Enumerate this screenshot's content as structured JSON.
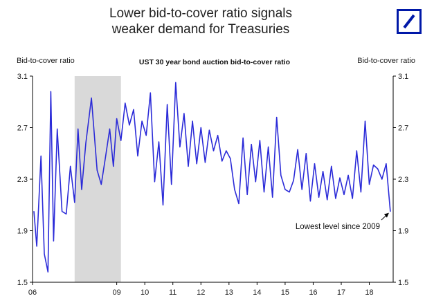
{
  "slide": {
    "title_line1": "Lower bid-to-cover ratio signals",
    "title_line2": "weaker demand for Treasuries",
    "logo": "deutsche-bank-logo"
  },
  "chart_data": {
    "type": "line",
    "title": "UST 30 year bond auction bid-to-cover ratio",
    "ylabel_left": "Bid-to-cover ratio",
    "ylabel_right": "Bid-to-cover ratio",
    "ylim": [
      1.5,
      3.1
    ],
    "xlim": [
      2006.0,
      2018.85
    ],
    "yticks": [
      {
        "value": 1.5,
        "label": "1.5"
      },
      {
        "value": 1.9,
        "label": "1.9"
      },
      {
        "value": 2.3,
        "label": "2.3"
      },
      {
        "value": 2.7,
        "label": "2.7"
      },
      {
        "value": 3.1,
        "label": "3.1"
      }
    ],
    "xticks": [
      {
        "value": 2006,
        "label": "06"
      },
      {
        "value": 2009,
        "label": "09"
      },
      {
        "value": 2010,
        "label": "10"
      },
      {
        "value": 2011,
        "label": "11"
      },
      {
        "value": 2012,
        "label": "12"
      },
      {
        "value": 2013,
        "label": "13"
      },
      {
        "value": 2014,
        "label": "14"
      },
      {
        "value": 2015,
        "label": "15"
      },
      {
        "value": 2016,
        "label": "16"
      },
      {
        "value": 2017,
        "label": "17"
      },
      {
        "value": 2018,
        "label": "18"
      }
    ],
    "shaded_region": [
      2007.5,
      2009.15
    ],
    "grid": false,
    "line_color": "#2b2bd8",
    "shade_color": "#d9d9d9",
    "series": [
      {
        "x": [
          2006.05,
          2006.15,
          2006.3,
          2006.42,
          2006.55,
          2006.65,
          2006.75,
          2006.88,
          2007.05,
          2007.2,
          2007.35,
          2007.5,
          2007.62,
          2007.75,
          2007.9,
          2008.1,
          2008.3,
          2008.45,
          2008.6,
          2008.75,
          2008.88,
          2009.0,
          2009.15,
          2009.3,
          2009.45,
          2009.6,
          2009.75,
          2009.9,
          2010.05,
          2010.2,
          2010.35,
          2010.5,
          2010.65,
          2010.8,
          2010.95,
          2011.1,
          2011.25,
          2011.4,
          2011.55,
          2011.7,
          2011.85,
          2012.0,
          2012.15,
          2012.3,
          2012.45,
          2012.6,
          2012.75,
          2012.9,
          2013.05,
          2013.2,
          2013.35,
          2013.5,
          2013.65,
          2013.8,
          2013.95,
          2014.1,
          2014.25,
          2014.4,
          2014.55,
          2014.7,
          2014.85,
          2015.0,
          2015.15,
          2015.3,
          2015.45,
          2015.6,
          2015.75,
          2015.9,
          2016.05,
          2016.2,
          2016.35,
          2016.5,
          2016.65,
          2016.8,
          2016.95,
          2017.1,
          2017.25,
          2017.4,
          2017.55,
          2017.7,
          2017.85,
          2018.0,
          2018.15,
          2018.3,
          2018.45,
          2018.6,
          2018.75
        ],
        "values": [
          2.05,
          1.78,
          2.48,
          1.72,
          1.58,
          2.98,
          1.82,
          2.69,
          2.05,
          2.03,
          2.4,
          2.12,
          2.69,
          2.22,
          2.58,
          2.93,
          2.37,
          2.26,
          2.47,
          2.69,
          2.4,
          2.77,
          2.6,
          2.89,
          2.72,
          2.84,
          2.48,
          2.75,
          2.64,
          2.97,
          2.28,
          2.59,
          2.1,
          2.88,
          2.26,
          3.05,
          2.55,
          2.81,
          2.4,
          2.75,
          2.42,
          2.7,
          2.43,
          2.68,
          2.52,
          2.64,
          2.44,
          2.52,
          2.46,
          2.22,
          2.11,
          2.62,
          2.18,
          2.57,
          2.28,
          2.6,
          2.2,
          2.55,
          2.16,
          2.78,
          2.33,
          2.22,
          2.2,
          2.29,
          2.53,
          2.22,
          2.5,
          2.13,
          2.42,
          2.16,
          2.36,
          2.14,
          2.4,
          2.15,
          2.31,
          2.18,
          2.33,
          2.15,
          2.52,
          2.2,
          2.75,
          2.26,
          2.41,
          2.38,
          2.3,
          2.42,
          2.05
        ]
      }
    ],
    "annotation": {
      "text": "Lowest level since 2009",
      "x": 2018.75,
      "y": 2.05
    }
  }
}
